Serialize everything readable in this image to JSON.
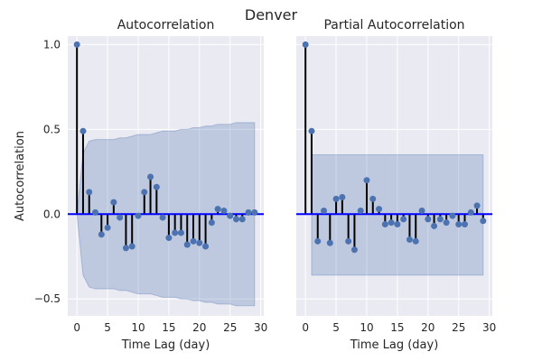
{
  "figure": {
    "title": "Denver"
  },
  "colors": {
    "panel_bg": "#EAEAF2",
    "grid": "#FFFFFF",
    "stem": "#000000",
    "marker": "#4C72B0",
    "zero_line": "#0000FF",
    "conf_fill": "#4C72B0"
  },
  "chart_data": [
    {
      "type": "stem",
      "title": "Autocorrelation",
      "xlabel": "Time Lag (day)",
      "ylabel": "Autocorrelation",
      "xlim": [
        -1.5,
        30.5
      ],
      "ylim": [
        -0.6,
        1.05
      ],
      "xticks": [
        0,
        5,
        10,
        15,
        20,
        25,
        30
      ],
      "xtick_labels": [
        "0",
        "5",
        "10",
        "15",
        "20",
        "25",
        "30"
      ],
      "yticks": [
        -0.5,
        0,
        0.5,
        1.0
      ],
      "ytick_labels": [
        "−0.5",
        "0.0",
        "0.5",
        "1.0"
      ],
      "grid": true,
      "x": [
        0,
        1,
        2,
        3,
        4,
        5,
        6,
        7,
        8,
        9,
        10,
        11,
        12,
        13,
        14,
        15,
        16,
        17,
        18,
        19,
        20,
        21,
        22,
        23,
        24,
        25,
        26,
        27,
        28,
        29
      ],
      "values": [
        1.0,
        0.49,
        0.13,
        0.01,
        -0.12,
        -0.08,
        0.07,
        -0.02,
        -0.2,
        -0.19,
        -0.01,
        0.13,
        0.22,
        0.16,
        -0.02,
        -0.14,
        -0.11,
        -0.11,
        -0.18,
        -0.16,
        -0.17,
        -0.19,
        -0.05,
        0.03,
        0.02,
        -0.01,
        -0.03,
        -0.03,
        0.01,
        0.01
      ],
      "confidence_band": {
        "x": [
          0,
          1,
          2,
          3,
          4,
          5,
          6,
          7,
          8,
          9,
          10,
          11,
          12,
          13,
          14,
          15,
          16,
          17,
          18,
          19,
          20,
          21,
          22,
          23,
          24,
          25,
          26,
          27,
          28,
          29
        ],
        "upper": [
          0.0,
          0.36,
          0.43,
          0.44,
          0.44,
          0.44,
          0.44,
          0.45,
          0.45,
          0.46,
          0.47,
          0.47,
          0.47,
          0.48,
          0.49,
          0.49,
          0.49,
          0.5,
          0.5,
          0.51,
          0.51,
          0.52,
          0.52,
          0.53,
          0.53,
          0.53,
          0.54,
          0.54,
          0.54,
          0.54
        ],
        "lower": [
          0.0,
          -0.36,
          -0.43,
          -0.44,
          -0.44,
          -0.44,
          -0.44,
          -0.45,
          -0.45,
          -0.46,
          -0.47,
          -0.47,
          -0.47,
          -0.48,
          -0.49,
          -0.49,
          -0.49,
          -0.5,
          -0.5,
          -0.51,
          -0.51,
          -0.52,
          -0.52,
          -0.53,
          -0.53,
          -0.53,
          -0.54,
          -0.54,
          -0.54,
          -0.54
        ]
      }
    },
    {
      "type": "stem",
      "title": "Partial Autocorrelation",
      "xlabel": "Time Lag (day)",
      "ylabel": "",
      "xlim": [
        -1.5,
        30.5
      ],
      "ylim": [
        -0.6,
        1.05
      ],
      "xticks": [
        0,
        5,
        10,
        15,
        20,
        25,
        30
      ],
      "xtick_labels": [
        "0",
        "5",
        "10",
        "15",
        "20",
        "25",
        "30"
      ],
      "yticks": [],
      "ytick_labels": [],
      "grid": true,
      "x": [
        0,
        1,
        2,
        3,
        4,
        5,
        6,
        7,
        8,
        9,
        10,
        11,
        12,
        13,
        14,
        15,
        16,
        17,
        18,
        19,
        20,
        21,
        22,
        23,
        24,
        25,
        26,
        27,
        28,
        29
      ],
      "values": [
        1.0,
        0.49,
        -0.16,
        0.02,
        -0.17,
        0.09,
        0.1,
        -0.16,
        -0.21,
        0.02,
        0.2,
        0.09,
        0.03,
        -0.06,
        -0.05,
        -0.06,
        -0.03,
        -0.15,
        -0.16,
        0.02,
        -0.03,
        -0.07,
        -0.03,
        -0.05,
        -0.01,
        -0.06,
        -0.06,
        0.01,
        0.05,
        -0.04
      ],
      "confidence_band": {
        "x": [
          1,
          29
        ],
        "upper": [
          0.35,
          0.35
        ],
        "lower": [
          -0.36,
          -0.36
        ]
      }
    }
  ]
}
